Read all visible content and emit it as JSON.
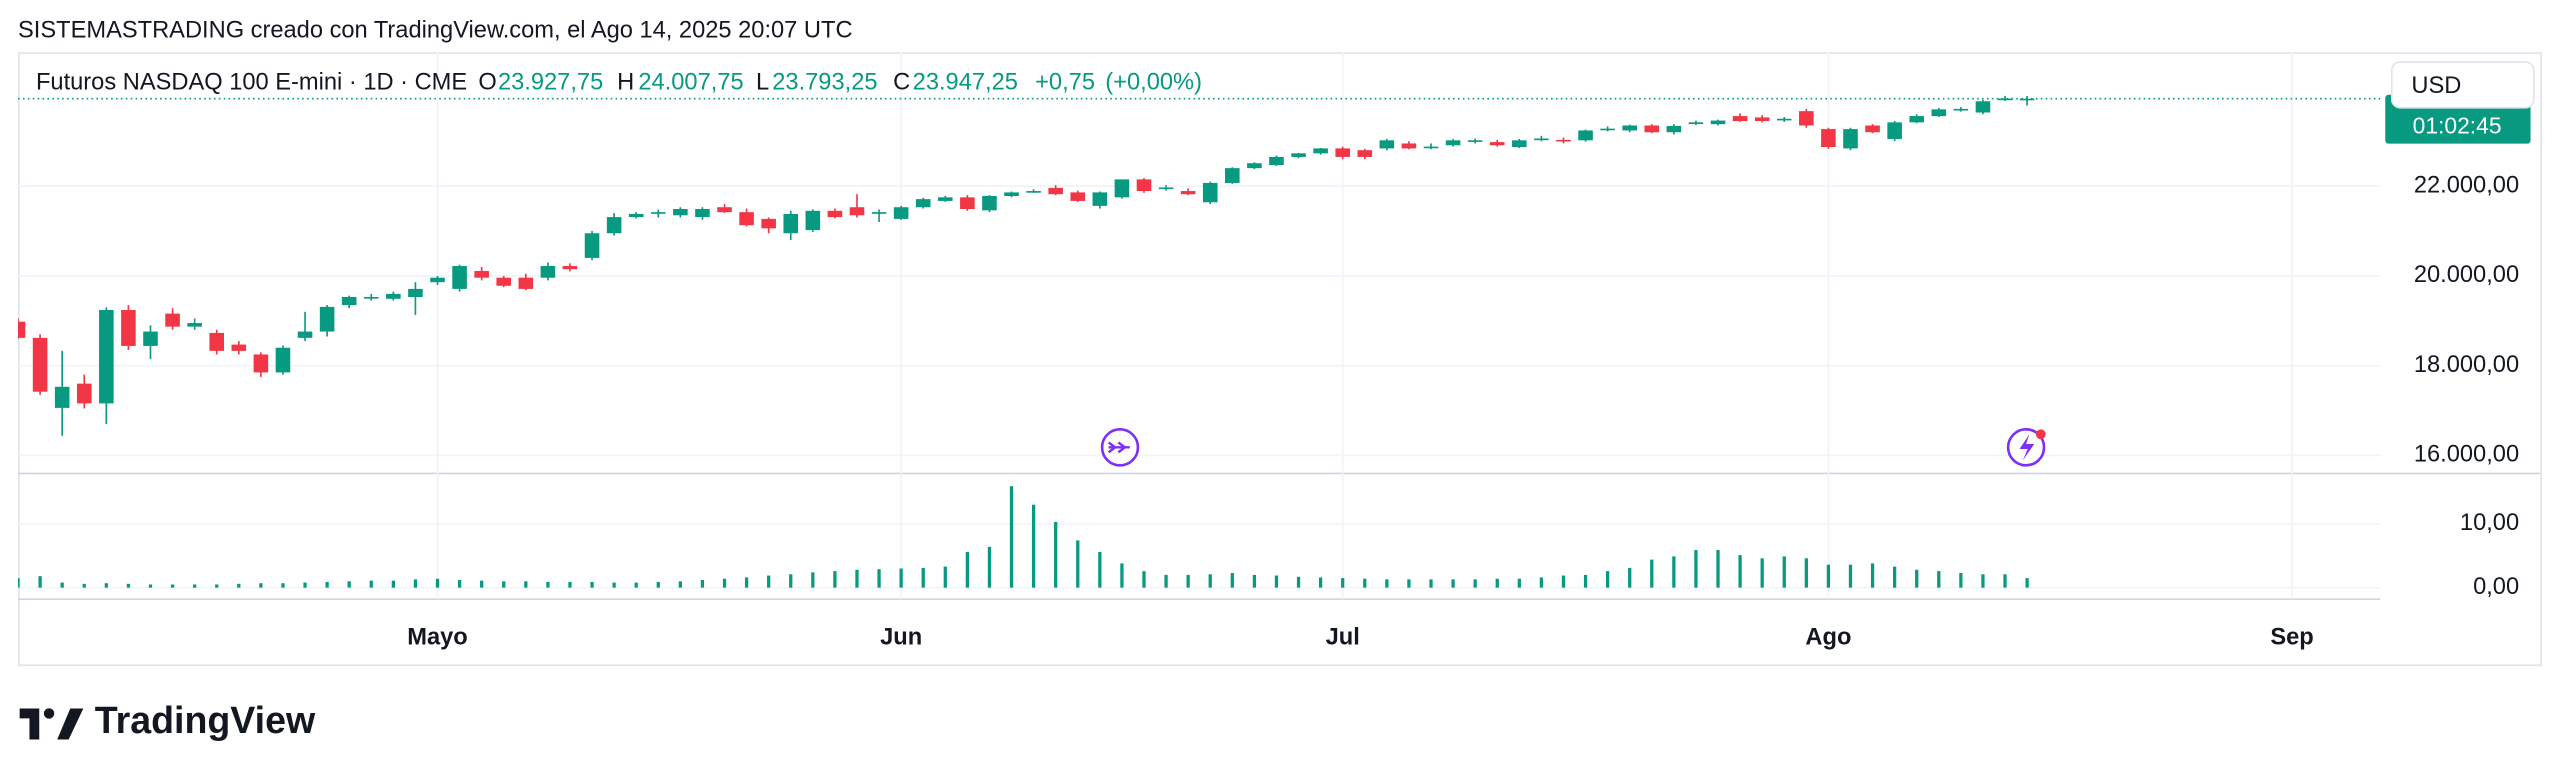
{
  "watermark": "SISTEMASTRADING creado con TradingView.com, el Ago 14, 2025 20:07 UTC",
  "brand": "TradingView",
  "chart_data": {
    "type": "candlestick",
    "title": "Futuros NASDAQ 100 E-mini · 1D · CME",
    "legend": {
      "open_label": "O",
      "open": {
        "value": 23927.75,
        "label": "23.927,75"
      },
      "high_label": "H",
      "high": {
        "value": 24007.75,
        "label": "24.007,75"
      },
      "low_label": "L",
      "low": {
        "value": 23793.25,
        "label": "23.793,25"
      },
      "close_label": "C",
      "close": {
        "value": 23947.25,
        "label": "23.947,25"
      },
      "change": {
        "value": 0.75,
        "label": "+0,75"
      },
      "change_pct": {
        "value": 0,
        "label": "(+0,00%)"
      }
    },
    "currency": "USD",
    "countdown": "01:02:45",
    "up_color": "#089981",
    "down_color": "#f23645",
    "open": [
      18980,
      18620,
      17060,
      17600,
      17160,
      19240,
      18440,
      19160,
      18870,
      18730,
      18470,
      18250,
      17850,
      18620,
      18760,
      19350,
      19500,
      19490,
      19530,
      19860,
      19710,
      20110,
      19960,
      19960,
      19960,
      20220,
      20400,
      20950,
      21310,
      21400,
      21350,
      21310,
      21530,
      21420,
      21270,
      20950,
      21020,
      21450,
      21530,
      21400,
      21270,
      21530,
      21670,
      21750,
      21460,
      21780,
      21870,
      21960,
      21860,
      21560,
      21750,
      22150,
      21950,
      21890,
      21640,
      22070,
      22400,
      22470,
      22650,
      22730,
      22840,
      22800,
      22840,
      22950,
      22860,
      22910,
      23000,
      22980,
      22870,
      23040,
      23030,
      23020,
      23260,
      23240,
      23350,
      23200,
      23400,
      23380,
      23560,
      23530,
      23480,
      23670,
      23270,
      22840,
      23350,
      23050,
      23420,
      23560,
      23700,
      23640,
      23940,
      23927.75
    ],
    "high": [
      19050,
      18700,
      18330,
      17800,
      19300,
      19350,
      18900,
      19280,
      19050,
      18800,
      18550,
      18300,
      18450,
      19200,
      19350,
      19560,
      19600,
      19650,
      19860,
      20000,
      20250,
      20200,
      20000,
      20050,
      20300,
      20280,
      21000,
      21400,
      21420,
      21480,
      21530,
      21530,
      21600,
      21500,
      21300,
      21450,
      21480,
      21500,
      21820,
      21480,
      21560,
      21740,
      21780,
      21800,
      21800,
      21880,
      21930,
      22020,
      21900,
      21880,
      22150,
      22180,
      22020,
      21950,
      22100,
      22420,
      22530,
      22680,
      22740,
      22850,
      22880,
      22830,
      23050,
      23000,
      22950,
      23050,
      23060,
      23030,
      23050,
      23120,
      23080,
      23260,
      23330,
      23370,
      23380,
      23380,
      23460,
      23480,
      23620,
      23580,
      23540,
      23720,
      23300,
      23300,
      23380,
      23450,
      23600,
      23740,
      23760,
      23920,
      24010,
      24007.75
    ],
    "low": [
      18600,
      17350,
      16440,
      17050,
      16700,
      18350,
      18150,
      18800,
      18800,
      18250,
      18250,
      17750,
      17800,
      18550,
      18650,
      19280,
      19450,
      19450,
      19130,
      19800,
      19650,
      19900,
      19750,
      19680,
      19900,
      20100,
      20350,
      20900,
      21280,
      21300,
      21300,
      21250,
      21400,
      21100,
      20950,
      20800,
      20980,
      21280,
      21300,
      21200,
      21250,
      21500,
      21650,
      21450,
      21420,
      21750,
      21850,
      21800,
      21650,
      21500,
      21720,
      21850,
      21900,
      21800,
      21600,
      22050,
      22380,
      22450,
      22620,
      22700,
      22600,
      22600,
      22800,
      22820,
      22820,
      22880,
      22950,
      22880,
      22850,
      23000,
      22950,
      22990,
      23220,
      23200,
      23180,
      23150,
      23360,
      23350,
      23430,
      23420,
      23430,
      23300,
      22830,
      22800,
      23180,
      23000,
      23400,
      23540,
      23660,
      23600,
      23900,
      23793.25
    ],
    "close": [
      18620,
      17420,
      17530,
      17160,
      19240,
      18440,
      18760,
      18870,
      18950,
      18330,
      18330,
      17850,
      18400,
      18760,
      19310,
      19530,
      19530,
      19600,
      19710,
      19960,
      20220,
      19960,
      19780,
      19710,
      20220,
      20150,
      20950,
      21310,
      21380,
      21420,
      21490,
      21490,
      21420,
      21130,
      21060,
      21380,
      21450,
      21310,
      21350,
      21420,
      21530,
      21710,
      21750,
      21490,
      21780,
      21860,
      21890,
      21820,
      21670,
      21860,
      22150,
      21890,
      21970,
      21820,
      22070,
      22400,
      22510,
      22650,
      22730,
      22840,
      22650,
      22650,
      23020,
      22840,
      22880,
      23020,
      23020,
      22910,
      23020,
      23060,
      23010,
      23240,
      23280,
      23350,
      23200,
      23340,
      23420,
      23460,
      23450,
      23450,
      23500,
      23350,
      22870,
      23270,
      23200,
      23420,
      23560,
      23710,
      23720,
      23890,
      23950,
      23947.25
    ],
    "xlim": [
      0,
      107
    ],
    "xticks": [
      {
        "value": 19,
        "label": "Mayo"
      },
      {
        "value": 40,
        "label": "Jun"
      },
      {
        "value": 60,
        "label": "Jul"
      },
      {
        "value": 82,
        "label": "Ago"
      },
      {
        "value": 103,
        "label": "Sep"
      }
    ],
    "ylim": [
      15636,
      24982
    ],
    "yticks": [
      {
        "value": 16000,
        "label": "16.000,00"
      },
      {
        "value": 18000,
        "label": "18.000,00"
      },
      {
        "value": 20000,
        "label": "20.000,00"
      },
      {
        "value": 22000,
        "label": "22.000,00"
      }
    ],
    "grid": true,
    "volume": {
      "color": "#089981",
      "values": [
        1.5,
        1.8,
        0.8,
        0.6,
        0.7,
        0.6,
        0.5,
        0.5,
        0.5,
        0.5,
        0.6,
        0.7,
        0.7,
        0.8,
        0.9,
        1.0,
        1.1,
        1.1,
        1.3,
        1.4,
        1.2,
        1.1,
        1.0,
        1.0,
        0.9,
        0.9,
        0.9,
        0.8,
        0.8,
        0.9,
        1.0,
        1.2,
        1.4,
        1.6,
        1.9,
        2.1,
        2.4,
        2.6,
        2.8,
        2.9,
        3.0,
        3.1,
        3.3,
        5.6,
        6.4,
        15.9,
        13.0,
        10.3,
        7.4,
        5.6,
        3.8,
        2.6,
        2.0,
        2.0,
        2.1,
        2.3,
        2.0,
        1.9,
        1.7,
        1.6,
        1.5,
        1.4,
        1.3,
        1.3,
        1.3,
        1.3,
        1.3,
        1.4,
        1.4,
        1.6,
        1.9,
        2.0,
        2.6,
        3.1,
        4.4,
        4.9,
        5.9,
        5.9,
        5.1,
        4.6,
        4.9,
        4.6,
        3.6,
        3.6,
        3.8,
        3.3,
        2.8,
        2.6,
        2.3,
        2.1,
        2.1,
        1.5
      ],
      "ylim": [
        -1.8,
        17.9
      ],
      "yticks": [
        {
          "value": 0,
          "label": "0,00"
        },
        {
          "value": 10,
          "label": "10,00"
        }
      ]
    }
  }
}
